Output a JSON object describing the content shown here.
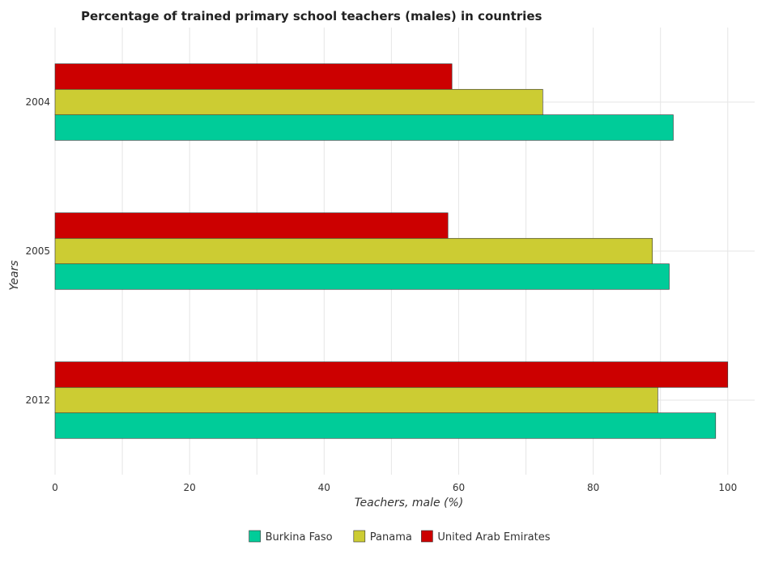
{
  "chart_data": {
    "type": "bar",
    "orientation": "horizontal",
    "title": "Percentage of trained primary school teachers (males) in countries",
    "xlabel": "Teachers, male (%)",
    "ylabel": "Years",
    "categories": [
      "2004",
      "2005",
      "2012"
    ],
    "series": [
      {
        "name": "Burkina Faso",
        "color": "#00cc99",
        "values": [
          91.9,
          91.3,
          98.2
        ]
      },
      {
        "name": "Panama",
        "color": "#cccc33",
        "values": [
          72.5,
          88.8,
          89.6
        ]
      },
      {
        "name": "United Arab Emirates",
        "color": "#cc0000",
        "values": [
          59.0,
          58.4,
          100.0
        ]
      }
    ],
    "xlim": [
      0,
      104
    ],
    "xticks": [
      0,
      20,
      40,
      60,
      80,
      100
    ],
    "grid": true,
    "legend": "bottom-center"
  }
}
